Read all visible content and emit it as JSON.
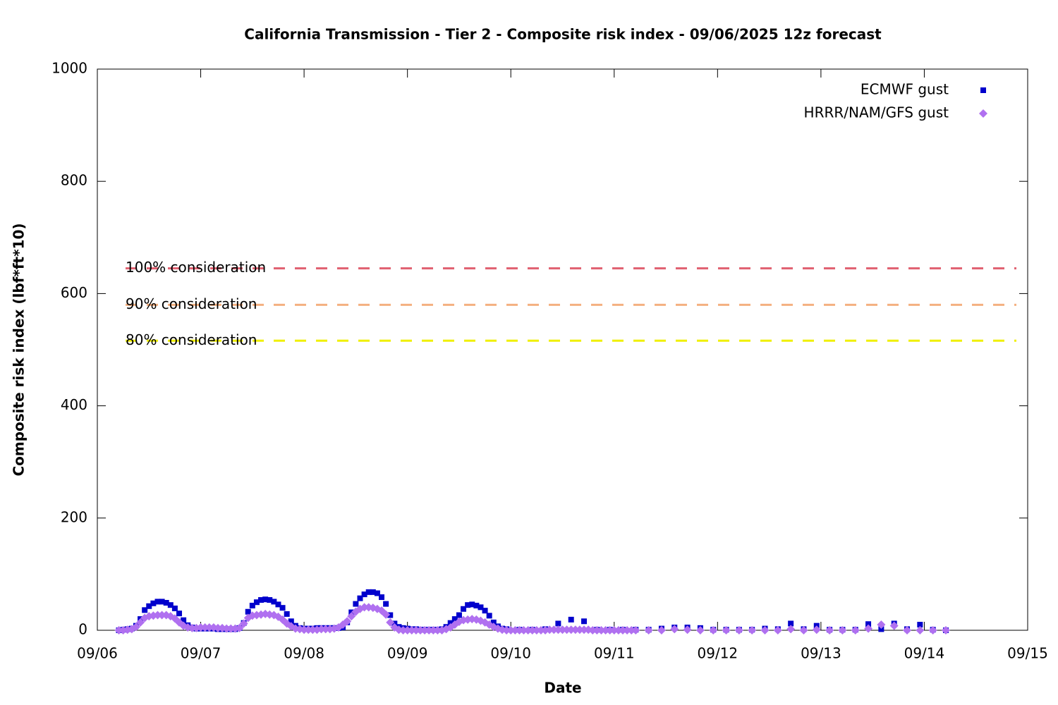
{
  "chart_data": {
    "type": "scatter",
    "title": "California Transmission - Tier 2 - Composite risk index - 09/06/2025 12z forecast",
    "x_label": "Date",
    "y_label": "Composite risk index (lbf*ft*10)",
    "xlim": [
      0,
      216
    ],
    "xticks": [
      {
        "value": 0,
        "label": "09/06"
      },
      {
        "value": 24,
        "label": "09/07"
      },
      {
        "value": 48,
        "label": "09/08"
      },
      {
        "value": 72,
        "label": "09/09"
      },
      {
        "value": 96,
        "label": "09/10"
      },
      {
        "value": 120,
        "label": "09/11"
      },
      {
        "value": 144,
        "label": "09/12"
      },
      {
        "value": 168,
        "label": "09/13"
      },
      {
        "value": 192,
        "label": "09/14"
      },
      {
        "value": 216,
        "label": "09/15"
      }
    ],
    "ylim": [
      0,
      1000
    ],
    "yticks": [
      0,
      200,
      400,
      600,
      800,
      1000
    ],
    "legend": "top-right",
    "thresholds": [
      {
        "label": "100% consideration",
        "value": 645,
        "color": "#e06070"
      },
      {
        "label": "90% consideration",
        "value": 580,
        "color": "#f4b080"
      },
      {
        "label": "80% consideration",
        "value": 516,
        "color": "#f0f000"
      }
    ],
    "series": [
      {
        "name": "ECMWF gust",
        "color": "#0000cc",
        "marker": "square",
        "x": [
          5,
          6,
          7,
          8,
          9,
          10,
          11,
          12,
          13,
          14,
          15,
          16,
          17,
          18,
          19,
          20,
          21,
          22,
          23,
          24,
          25,
          26,
          27,
          28,
          29,
          30,
          31,
          32,
          33,
          34,
          35,
          36,
          37,
          38,
          39,
          40,
          41,
          42,
          43,
          44,
          45,
          46,
          47,
          48,
          49,
          50,
          51,
          52,
          53,
          54,
          55,
          56,
          57,
          58,
          59,
          60,
          61,
          62,
          63,
          64,
          65,
          66,
          67,
          68,
          69,
          70,
          71,
          72,
          73,
          74,
          75,
          76,
          77,
          78,
          79,
          80,
          81,
          82,
          83,
          84,
          85,
          86,
          87,
          88,
          89,
          90,
          91,
          92,
          93,
          94,
          95,
          98,
          101,
          104,
          107,
          110,
          113,
          116,
          119,
          122,
          125,
          128,
          131,
          134,
          137,
          140,
          143,
          146,
          149,
          152,
          155,
          158,
          161,
          164,
          167,
          170,
          173,
          176,
          179,
          182,
          185,
          188,
          191,
          194,
          197
        ],
        "values": [
          0,
          1,
          2,
          3,
          8,
          20,
          36,
          43,
          48,
          51,
          51,
          49,
          45,
          39,
          30,
          18,
          9,
          5,
          3,
          3,
          3,
          3,
          3,
          2,
          2,
          2,
          2,
          2,
          4,
          13,
          33,
          44,
          50,
          54,
          55,
          54,
          51,
          46,
          40,
          29,
          16,
          8,
          4,
          3,
          3,
          3,
          4,
          4,
          4,
          4,
          4,
          4,
          5,
          14,
          32,
          47,
          57,
          64,
          68,
          68,
          66,
          59,
          47,
          27,
          12,
          6,
          4,
          3,
          2,
          2,
          1,
          1,
          1,
          1,
          1,
          2,
          6,
          13,
          20,
          27,
          38,
          45,
          46,
          44,
          41,
          35,
          26,
          14,
          7,
          3,
          2,
          1,
          1,
          2,
          12,
          19,
          16,
          1,
          1,
          1,
          1,
          1,
          3,
          5,
          5,
          4,
          1,
          1,
          1,
          1,
          3,
          2,
          12,
          2,
          8,
          1,
          1,
          1,
          11,
          2,
          12,
          2,
          10,
          1,
          0
        ]
      },
      {
        "name": "HRRR/NAM/GFS gust",
        "color": "#b070f0",
        "marker": "diamond",
        "x": [
          5,
          6,
          7,
          8,
          9,
          10,
          11,
          12,
          13,
          14,
          15,
          16,
          17,
          18,
          19,
          20,
          21,
          22,
          23,
          24,
          25,
          26,
          27,
          28,
          29,
          30,
          31,
          32,
          33,
          34,
          35,
          36,
          37,
          38,
          39,
          40,
          41,
          42,
          43,
          44,
          45,
          46,
          47,
          48,
          49,
          50,
          51,
          52,
          53,
          54,
          55,
          56,
          57,
          58,
          59,
          60,
          61,
          62,
          63,
          64,
          65,
          66,
          67,
          68,
          69,
          70,
          71,
          72,
          73,
          74,
          75,
          76,
          77,
          78,
          79,
          80,
          81,
          82,
          83,
          84,
          85,
          86,
          87,
          88,
          89,
          90,
          91,
          92,
          93,
          94,
          95,
          96,
          97,
          98,
          99,
          100,
          101,
          102,
          103,
          104,
          105,
          106,
          107,
          108,
          109,
          110,
          111,
          112,
          113,
          114,
          115,
          116,
          117,
          118,
          119,
          120,
          121,
          122,
          123,
          124,
          125,
          128,
          131,
          134,
          137,
          140,
          143,
          146,
          149,
          152,
          155,
          158,
          161,
          164,
          167,
          170,
          173,
          176,
          179,
          182,
          185,
          188,
          191,
          194,
          197
        ],
        "values": [
          0,
          0,
          1,
          2,
          6,
          14,
          22,
          25,
          26,
          27,
          27,
          27,
          25,
          21,
          14,
          8,
          5,
          4,
          4,
          5,
          5,
          5,
          5,
          4,
          4,
          3,
          3,
          3,
          4,
          12,
          22,
          26,
          27,
          28,
          29,
          28,
          27,
          24,
          19,
          12,
          7,
          3,
          2,
          1,
          1,
          1,
          1,
          2,
          2,
          2,
          3,
          5,
          10,
          16,
          25,
          33,
          38,
          41,
          41,
          40,
          38,
          35,
          28,
          14,
          5,
          1,
          0,
          0,
          0,
          0,
          0,
          0,
          0,
          0,
          0,
          0,
          2,
          5,
          10,
          15,
          18,
          19,
          20,
          19,
          17,
          14,
          10,
          6,
          3,
          1,
          0,
          0,
          0,
          0,
          0,
          0,
          0,
          0,
          0,
          0,
          1,
          1,
          1,
          1,
          1,
          1,
          1,
          1,
          1,
          1,
          0,
          0,
          0,
          0,
          0,
          0,
          0,
          0,
          0,
          0,
          0,
          0,
          0,
          2,
          1,
          0,
          0,
          0,
          0,
          0,
          0,
          0,
          2,
          0,
          1,
          0,
          0,
          0,
          3,
          10,
          8,
          0,
          0,
          0,
          0
        ]
      }
    ]
  }
}
